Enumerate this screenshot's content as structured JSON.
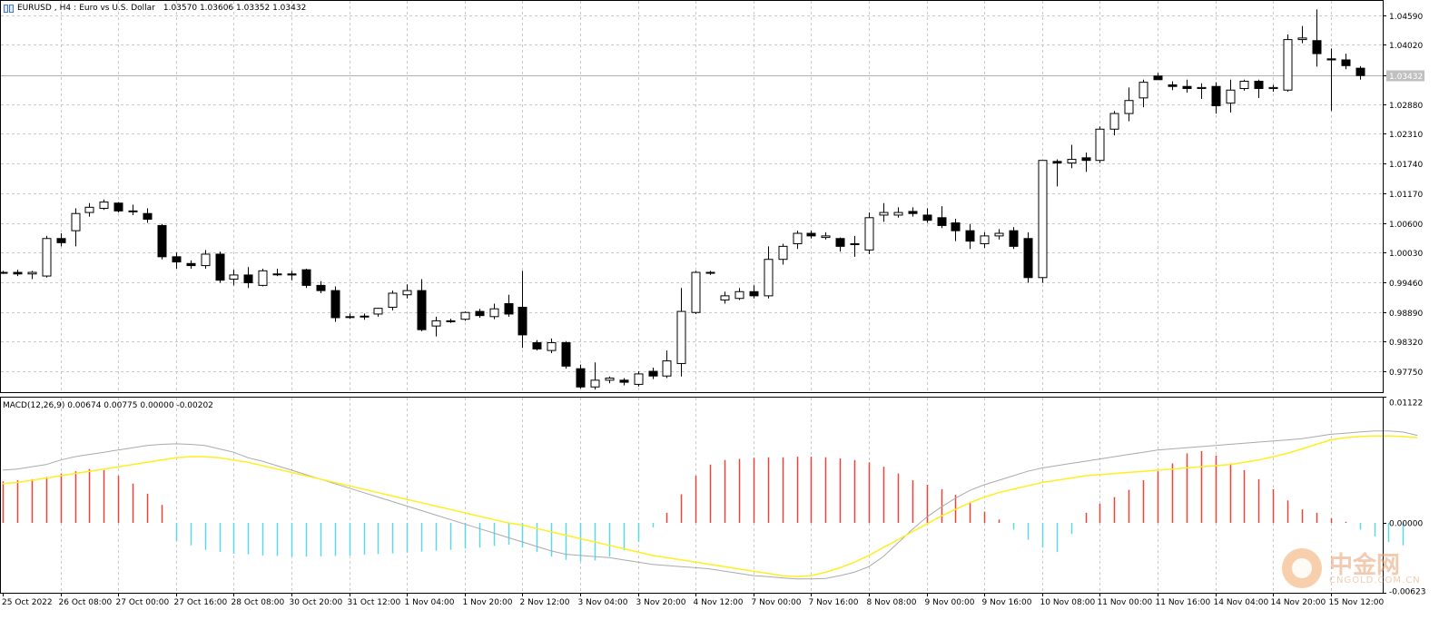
{
  "header": {
    "symbol": "EURUSD",
    "timeframe": "H4",
    "description": "Euro vs U.S. Dollar",
    "ohlc": "1.03570 1.03606 1.03352 1.03432"
  },
  "macd_header": "MACD(12,26,9) 0.00674 0.00775 0.00000 -0.00202",
  "watermark": {
    "name": "中金网",
    "domain": "CNGOLD.COM.CN"
  },
  "colors": {
    "bull_body": "#ffffff",
    "bear_body": "#000000",
    "wick": "#000000",
    "grid": "#c8c8c8",
    "macd_pos": "#e8443a",
    "macd_neg": "#5ad8e8",
    "macd_line": "#aaaaaa",
    "signal_line": "#ffee22",
    "current_price_line": "#b0b0b0"
  },
  "chart_data": [
    {
      "type": "candlestick",
      "title": "EURUSD, H4",
      "ylim": [
        0.9735,
        1.0488
      ],
      "yticks": [
        "1.04590",
        "1.04020",
        "1.03432",
        "1.02880",
        "1.02310",
        "1.01740",
        "1.01170",
        "1.00600",
        "1.00030",
        "0.99460",
        "0.98890",
        "0.98320",
        "0.97750"
      ],
      "current_price": 1.03432,
      "current_price_label": "1.03432",
      "xticks": [
        {
          "label": "25 Oct 2022",
          "index": 0
        },
        {
          "label": "26 Oct 08:00",
          "index": 4
        },
        {
          "label": "27 Oct 00:00",
          "index": 8
        },
        {
          "label": "27 Oct 16:00",
          "index": 12
        },
        {
          "label": "28 Oct 08:00",
          "index": 16
        },
        {
          "label": "30 Oct 20:00",
          "index": 20
        },
        {
          "label": "31 Oct 12:00",
          "index": 24
        },
        {
          "label": "1 Nov 04:00",
          "index": 28
        },
        {
          "label": "1 Nov 20:00",
          "index": 32
        },
        {
          "label": "2 Nov 12:00",
          "index": 36
        },
        {
          "label": "3 Nov 04:00",
          "index": 40
        },
        {
          "label": "3 Nov 20:00",
          "index": 44
        },
        {
          "label": "4 Nov 12:00",
          "index": 48
        },
        {
          "label": "7 Nov 00:00",
          "index": 52
        },
        {
          "label": "7 Nov 16:00",
          "index": 56
        },
        {
          "label": "8 Nov 08:00",
          "index": 60
        },
        {
          "label": "9 Nov 00:00",
          "index": 64
        },
        {
          "label": "9 Nov 16:00",
          "index": 68
        },
        {
          "label": "10 Nov 08:00",
          "index": 72
        },
        {
          "label": "11 Nov 00:00",
          "index": 76
        },
        {
          "label": "11 Nov 16:00",
          "index": 80
        },
        {
          "label": "14 Nov 04:00",
          "index": 84
        },
        {
          "label": "14 Nov 20:00",
          "index": 88
        },
        {
          "label": "15 Nov 12:00",
          "index": 92
        }
      ],
      "candles": [
        [
          0.9965,
          0.9968,
          0.9962,
          0.9965
        ],
        [
          0.9965,
          0.997,
          0.9958,
          0.9962
        ],
        [
          0.9962,
          0.9968,
          0.9952,
          0.9965
        ],
        [
          0.9958,
          1.0035,
          0.9955,
          1.003
        ],
        [
          1.003,
          1.004,
          1.0015,
          1.0022
        ],
        [
          1.0045,
          1.0088,
          1.0015,
          1.0078
        ],
        [
          1.008,
          1.0098,
          1.0072,
          1.009
        ],
        [
          1.0088,
          1.0105,
          1.0085,
          1.01
        ],
        [
          1.0098,
          1.01,
          1.008,
          1.0083
        ],
        [
          1.0083,
          1.0095,
          1.0075,
          1.0082
        ],
        [
          1.0078,
          1.0088,
          1.006,
          1.0067
        ],
        [
          1.0055,
          1.0058,
          0.999,
          0.9995
        ],
        [
          0.9995,
          1.0003,
          0.9972,
          0.9985
        ],
        [
          0.9982,
          0.9988,
          0.9972,
          0.9978
        ],
        [
          0.9978,
          1.0008,
          0.9972,
          1.0
        ],
        [
          1.0,
          1.0005,
          0.9945,
          0.995
        ],
        [
          0.9952,
          0.997,
          0.994,
          0.996
        ],
        [
          0.996,
          0.9975,
          0.9935,
          0.9945
        ],
        [
          0.994,
          0.9972,
          0.9938,
          0.9968
        ],
        [
          0.9962,
          0.9972,
          0.9958,
          0.9962
        ],
        [
          0.9962,
          0.9968,
          0.995,
          0.996
        ],
        [
          0.997,
          0.9972,
          0.9935,
          0.994
        ],
        [
          0.994,
          0.9948,
          0.9925,
          0.993
        ],
        [
          0.993,
          0.9938,
          0.987,
          0.9878
        ],
        [
          0.988,
          0.9886,
          0.9876,
          0.988
        ],
        [
          0.988,
          0.9886,
          0.9874,
          0.9881
        ],
        [
          0.9885,
          0.9897,
          0.988,
          0.9896
        ],
        [
          0.9898,
          0.993,
          0.9892,
          0.9925
        ],
        [
          0.9922,
          0.9942,
          0.9915,
          0.993
        ],
        [
          0.993,
          0.9952,
          0.9852,
          0.9855
        ],
        [
          0.9862,
          0.988,
          0.9842,
          0.9872
        ],
        [
          0.9872,
          0.9876,
          0.9868,
          0.9872
        ],
        [
          0.9875,
          0.989,
          0.9872,
          0.9888
        ],
        [
          0.989,
          0.9895,
          0.9878,
          0.9882
        ],
        [
          0.988,
          0.9905,
          0.9875,
          0.9895
        ],
        [
          0.9905,
          0.9922,
          0.988,
          0.9885
        ],
        [
          0.9898,
          0.9968,
          0.982,
          0.9845
        ],
        [
          0.983,
          0.9835,
          0.9815,
          0.9818
        ],
        [
          0.9815,
          0.9838,
          0.981,
          0.983
        ],
        [
          0.983,
          0.9833,
          0.978,
          0.9785
        ],
        [
          0.978,
          0.9788,
          0.9742,
          0.9745
        ],
        [
          0.9745,
          0.9792,
          0.974,
          0.9758
        ],
        [
          0.9758,
          0.9765,
          0.9752,
          0.9762
        ],
        [
          0.9758,
          0.9762,
          0.9748,
          0.9754
        ],
        [
          0.975,
          0.9775,
          0.9746,
          0.977
        ],
        [
          0.9775,
          0.9782,
          0.976,
          0.9766
        ],
        [
          0.9766,
          0.9815,
          0.9762,
          0.9795
        ],
        [
          0.979,
          0.9935,
          0.9765,
          0.989
        ],
        [
          0.9888,
          0.9968,
          0.9885,
          0.9965
        ],
        [
          0.9965,
          0.9968,
          0.996,
          0.9964
        ],
        [
          0.9912,
          0.9928,
          0.9905,
          0.992
        ],
        [
          0.9915,
          0.9935,
          0.9912,
          0.9928
        ],
        [
          0.9928,
          0.994,
          0.9915,
          0.992
        ],
        [
          0.992,
          1.0015,
          0.9915,
          0.999
        ],
        [
          0.999,
          1.002,
          0.998,
          1.0015
        ],
        [
          1.002,
          1.0045,
          1.001,
          1.004
        ],
        [
          1.004,
          1.0045,
          1.003,
          1.0035
        ],
        [
          1.0032,
          1.0042,
          1.0028,
          1.0035
        ],
        [
          1.003,
          1.0032,
          1.0005,
          1.0015
        ],
        [
          1.002,
          1.0035,
          0.9995,
          1.002
        ],
        [
          1.0008,
          1.008,
          1.0,
          1.007
        ],
        [
          1.0075,
          1.0098,
          1.0062,
          1.008
        ],
        [
          1.0075,
          1.009,
          1.007,
          1.008
        ],
        [
          1.0082,
          1.009,
          1.0072,
          1.0078
        ],
        [
          1.0075,
          1.0088,
          1.006,
          1.0065
        ],
        [
          1.007,
          1.0092,
          1.005,
          1.0055
        ],
        [
          1.006,
          1.0068,
          1.0025,
          1.0045
        ],
        [
          1.0045,
          1.0058,
          1.001,
          1.0025
        ],
        [
          1.002,
          1.0042,
          1.0012,
          1.0035
        ],
        [
          1.0035,
          1.0048,
          1.0028,
          1.004
        ],
        [
          1.0045,
          1.0052,
          1.001,
          1.0015
        ],
        [
          1.003,
          1.0042,
          0.9945,
          0.9955
        ],
        [
          0.9955,
          1.0175,
          0.9945,
          1.018
        ],
        [
          1.0178,
          1.0182,
          1.013,
          1.0175
        ],
        [
          1.0175,
          1.021,
          1.0165,
          1.0182
        ],
        [
          1.0185,
          1.0195,
          1.0158,
          1.018
        ],
        [
          1.018,
          1.0245,
          1.0175,
          1.024
        ],
        [
          1.024,
          1.0275,
          1.0228,
          1.027
        ],
        [
          1.027,
          1.032,
          1.0255,
          1.0295
        ],
        [
          1.03,
          1.0335,
          1.0282,
          1.033
        ],
        [
          1.0342,
          1.0348,
          1.0335,
          1.0335
        ],
        [
          1.0325,
          1.0332,
          1.0315,
          1.0322
        ],
        [
          1.0322,
          1.0335,
          1.031,
          1.0318
        ],
        [
          1.0318,
          1.0328,
          1.0298,
          1.032
        ],
        [
          1.0322,
          1.033,
          1.027,
          1.0285
        ],
        [
          1.029,
          1.0335,
          1.0272,
          1.0315
        ],
        [
          1.0318,
          1.0335,
          1.0314,
          1.0332
        ],
        [
          1.0332,
          1.0335,
          1.03,
          1.0318
        ],
        [
          1.0318,
          1.0325,
          1.0312,
          1.032
        ],
        [
          1.0315,
          1.0422,
          1.0312,
          1.0412
        ],
        [
          1.0412,
          1.0438,
          1.0405,
          1.0415
        ],
        [
          1.041,
          1.047,
          1.036,
          1.0385
        ],
        [
          1.0375,
          1.0395,
          1.0275,
          1.0373
        ],
        [
          1.0373,
          1.0385,
          1.0355,
          1.0362
        ],
        [
          1.0357,
          1.0361,
          1.0335,
          1.0343
        ]
      ]
    },
    {
      "type": "bar+line",
      "title": "MACD(12,26,9)",
      "ylim": [
        -0.00623,
        0.01125
      ],
      "yticks": [
        "0.01122",
        "0.00000",
        "-0.00623"
      ],
      "histogram": [
        0.0037,
        0.0038,
        0.0039,
        0.0041,
        0.0044,
        0.0046,
        0.0048,
        0.0047,
        0.0042,
        0.0035,
        0.0026,
        0.0016,
        -0.0016,
        -0.002,
        -0.0024,
        -0.0026,
        -0.00275,
        -0.0028,
        -0.0029,
        -0.00295,
        -0.003,
        -0.003,
        -0.00298,
        -0.00295,
        -0.0029,
        -0.00284,
        -0.00278,
        -0.00272,
        -0.00265,
        -0.00256,
        -0.00248,
        -0.0024,
        -0.0023,
        -0.0022,
        -0.00205,
        -0.00195,
        -0.0022,
        -0.0026,
        -0.003,
        -0.0033,
        -0.0034,
        -0.00335,
        -0.003,
        -0.00245,
        -0.0017,
        -0.0004,
        0.0009,
        0.00255,
        0.0042,
        0.0052,
        0.0056,
        0.0057,
        0.0058,
        0.00585,
        0.00585,
        0.0059,
        0.0059,
        0.00585,
        0.00575,
        0.0056,
        0.0054,
        0.005,
        0.0044,
        0.0038,
        0.0034,
        0.003,
        0.0025,
        0.0018,
        0.001,
        0.0003,
        -0.0006,
        -0.0015,
        -0.0022,
        -0.0026,
        -0.001,
        0.0009,
        0.0017,
        0.0023,
        0.00295,
        0.0038,
        0.0046,
        0.0053,
        0.0062,
        0.0064,
        0.006,
        0.0053,
        0.0047,
        0.0039,
        0.003,
        0.002,
        0.0012,
        0.0009,
        0.0004,
        0.0001,
        -0.0006,
        -0.0012,
        -0.0017,
        -0.002
      ],
      "macd_line": [
        0.0047,
        0.0048,
        0.005,
        0.0052,
        0.0056,
        0.0059,
        0.0061,
        0.0063,
        0.0065,
        0.0067,
        0.0069,
        0.007,
        0.00705,
        0.007,
        0.0069,
        0.0066,
        0.0063,
        0.0058,
        0.0055,
        0.0051,
        0.0047,
        0.0043,
        0.0039,
        0.0035,
        0.0031,
        0.0027,
        0.0023,
        0.0019,
        0.0015,
        0.0011,
        0.0007,
        0.0003,
        -0.0001,
        -0.0005,
        -0.0009,
        -0.0013,
        -0.0017,
        -0.0021,
        -0.0025,
        -0.0028,
        -0.0029,
        -0.003,
        -0.0031,
        -0.0033,
        -0.0035,
        -0.0037,
        -0.0038,
        -0.0039,
        -0.004,
        -0.0041,
        -0.0043,
        -0.0045,
        -0.0047,
        -0.0048,
        -0.0049,
        -0.005,
        -0.005,
        -0.00495,
        -0.0047,
        -0.0044,
        -0.0039,
        -0.003,
        -0.0018,
        -0.0006,
        0.0005,
        0.0014,
        0.0022,
        0.0029,
        0.0034,
        0.0038,
        0.0042,
        0.0046,
        0.0049,
        0.0051,
        0.0053,
        0.0055,
        0.0057,
        0.0059,
        0.0061,
        0.0063,
        0.0065,
        0.0066,
        0.0067,
        0.0068,
        0.0069,
        0.007,
        0.0071,
        0.0072,
        0.0073,
        0.0074,
        0.0075,
        0.0077,
        0.0079,
        0.008,
        0.0081,
        0.0082,
        0.0082,
        0.0081,
        0.0078
      ],
      "signal_line": [
        0.0035,
        0.0036,
        0.0038,
        0.004,
        0.0042,
        0.0044,
        0.0046,
        0.0048,
        0.005,
        0.0052,
        0.0054,
        0.0056,
        0.0058,
        0.0059,
        0.0059,
        0.0058,
        0.0056,
        0.0054,
        0.0051,
        0.0048,
        0.0045,
        0.0042,
        0.0039,
        0.0036,
        0.0033,
        0.003,
        0.0027,
        0.0024,
        0.0021,
        0.0018,
        0.0015,
        0.0012,
        0.0009,
        0.0006,
        0.0003,
        0.0,
        -0.0002,
        -0.0005,
        -0.0008,
        -0.0011,
        -0.0014,
        -0.0017,
        -0.002,
        -0.0023,
        -0.0026,
        -0.0029,
        -0.0031,
        -0.0033,
        -0.0035,
        -0.0037,
        -0.0039,
        -0.0041,
        -0.0043,
        -0.0045,
        -0.0047,
        -0.0048,
        -0.0047,
        -0.0044,
        -0.004,
        -0.0035,
        -0.0029,
        -0.0022,
        -0.0015,
        -0.0008,
        -0.0001,
        0.0006,
        0.0012,
        0.0018,
        0.0023,
        0.0027,
        0.003,
        0.0033,
        0.0036,
        0.0038,
        0.004,
        0.0042,
        0.0043,
        0.0044,
        0.0045,
        0.0046,
        0.0047,
        0.0048,
        0.0049,
        0.005,
        0.0051,
        0.0052,
        0.0054,
        0.0056,
        0.0059,
        0.0062,
        0.0066,
        0.007,
        0.0074,
        0.0076,
        0.0077,
        0.00775,
        0.00775,
        0.0077,
        0.0076
      ]
    }
  ]
}
